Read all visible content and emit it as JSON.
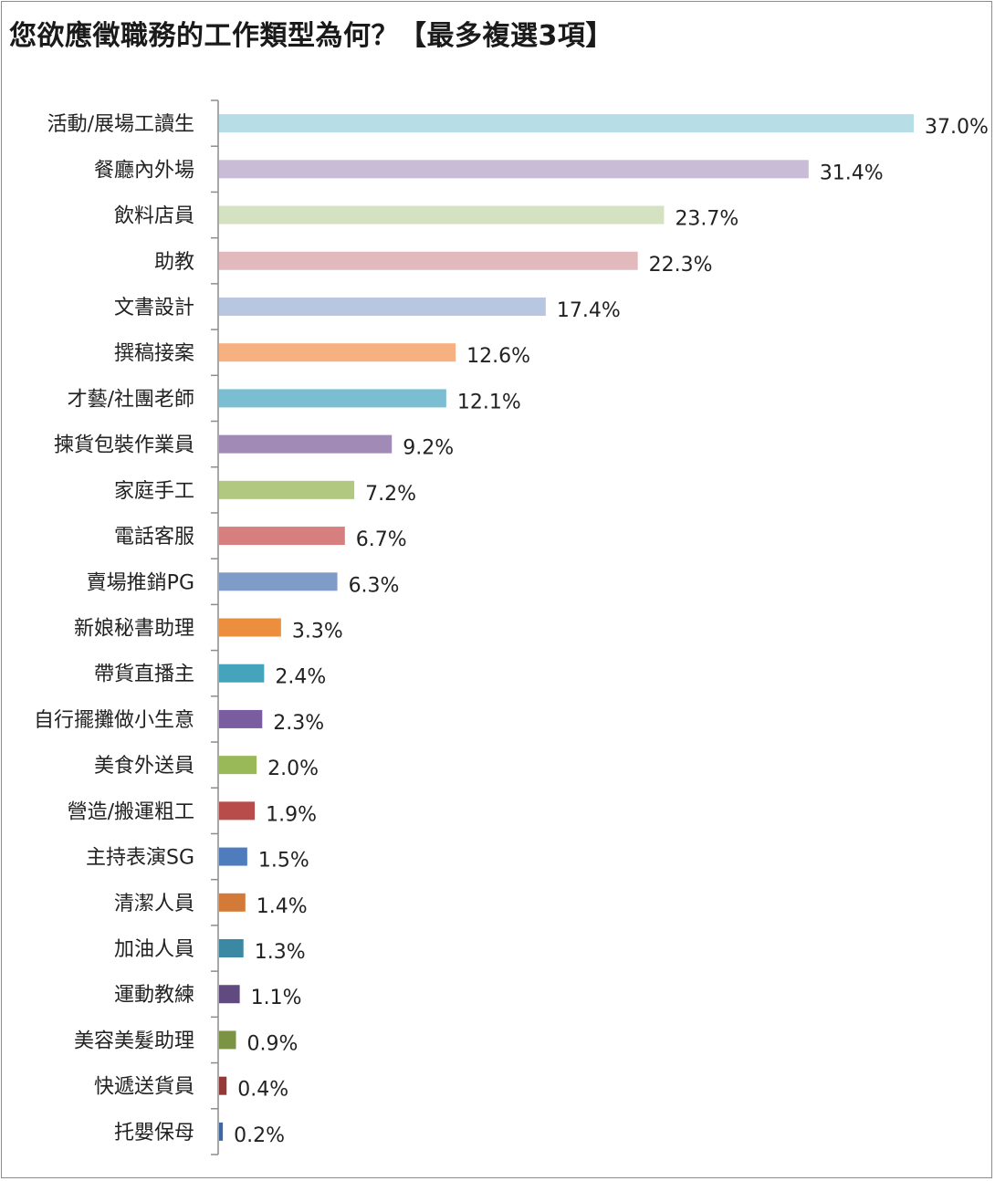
{
  "chart_data": {
    "type": "bar",
    "orientation": "horizontal",
    "title": "您欲應徵職務的工作類型為何？【最多複選3項】",
    "categories": [
      "活動/展場工讀生",
      "餐廳內外場",
      "飲料店員",
      "助教",
      "文書設計",
      "撰稿接案",
      "才藝/社團老師",
      "揀貨包裝作業員",
      "家庭手工",
      "電話客服",
      "賣場推銷PG",
      "新娘秘書助理",
      "帶貨直播主",
      "自行擺攤做小生意",
      "美食外送員",
      "營造/搬運粗工",
      "主持表演SG",
      "清潔人員",
      "加油人員",
      "運動教練",
      "美容美髮助理",
      "快遞送貨員",
      "托嬰保母"
    ],
    "values": [
      37.0,
      31.4,
      23.7,
      22.3,
      17.4,
      12.6,
      12.1,
      9.2,
      7.2,
      6.7,
      6.3,
      3.3,
      2.4,
      2.3,
      2.0,
      1.9,
      1.5,
      1.4,
      1.3,
      1.1,
      0.9,
      0.4,
      0.2
    ],
    "value_labels": [
      "37.0%",
      "31.4%",
      "23.7%",
      "22.3%",
      "17.4%",
      "12.6%",
      "12.1%",
      "9.2%",
      "7.2%",
      "6.7%",
      "6.3%",
      "3.3%",
      "2.4%",
      "2.3%",
      "2.0%",
      "1.9%",
      "1.5%",
      "1.4%",
      "1.3%",
      "1.1%",
      "0.9%",
      "0.4%",
      "0.2%"
    ],
    "colors": [
      "#b7dde6",
      "#c9bcd7",
      "#d4e2c2",
      "#e2b9bd",
      "#b9c6e2",
      "#f7b181",
      "#7bbed2",
      "#a18bb6",
      "#b0c87f",
      "#d77f7f",
      "#7f9cc9",
      "#eb8e3e",
      "#44a4bc",
      "#7a5d9e",
      "#99b858",
      "#b84c4b",
      "#4f7cbc",
      "#d47a39",
      "#3a88a1",
      "#614a80",
      "#7a9444",
      "#953838",
      "#3e68a3"
    ],
    "xlim": [
      0,
      37.0
    ],
    "grid": false,
    "legend": "none",
    "xlabel": "",
    "ylabel": ""
  }
}
